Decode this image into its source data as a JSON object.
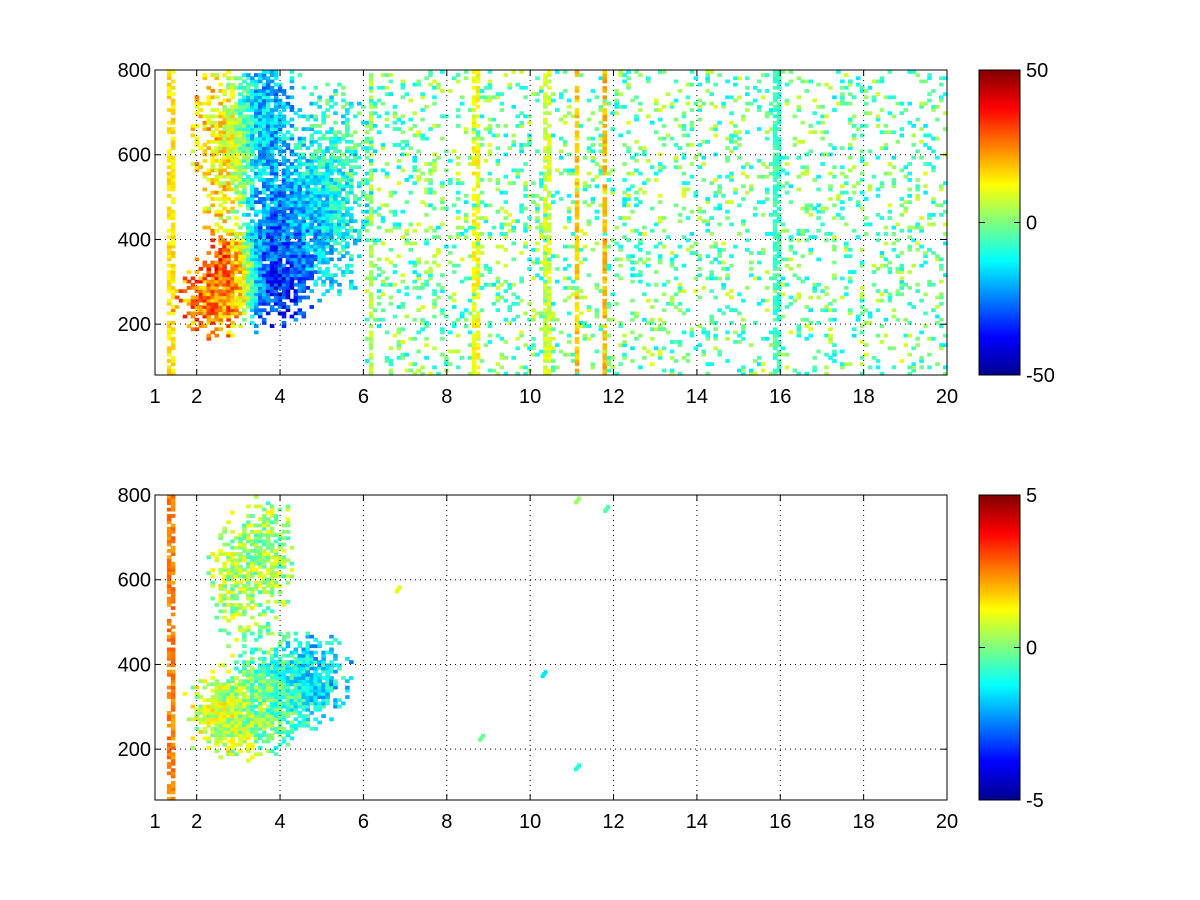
{
  "chart_data": [
    {
      "type": "heatmap",
      "title": "",
      "xlabel": "",
      "ylabel": "",
      "xlim": [
        1,
        20
      ],
      "ylim": [
        80,
        800
      ],
      "xticks": [
        1,
        2,
        4,
        6,
        8,
        10,
        12,
        14,
        16,
        18,
        20
      ],
      "yticks": [
        200,
        400,
        600,
        800
      ],
      "grid": true,
      "colormap": "jet",
      "clim": [
        -50,
        50
      ],
      "colorbar_ticks": [
        50,
        0,
        -50
      ],
      "background": "#ffffff",
      "clusters": [
        {
          "x": 2.4,
          "y": 260,
          "sx": 0.45,
          "sy": 45,
          "value": 25,
          "weight": 1.0
        },
        {
          "x": 3.0,
          "y": 330,
          "sx": 0.35,
          "sy": 50,
          "value": 40,
          "weight": 0.9
        },
        {
          "x": 3.7,
          "y": 320,
          "sx": 0.45,
          "sy": 60,
          "value": -40,
          "weight": 1.0
        },
        {
          "x": 4.3,
          "y": 420,
          "sx": 0.6,
          "sy": 90,
          "value": -25,
          "weight": 0.9
        },
        {
          "x": 2.7,
          "y": 620,
          "sx": 0.4,
          "sy": 110,
          "value": 15,
          "weight": 0.7
        },
        {
          "x": 3.6,
          "y": 680,
          "sx": 0.4,
          "sy": 110,
          "value": -20,
          "weight": 0.8
        },
        {
          "x": 5.2,
          "y": 520,
          "sx": 0.6,
          "sy": 130,
          "value": -8,
          "weight": 0.6
        }
      ],
      "stripes": [
        {
          "x": 1.4,
          "value": 15
        },
        {
          "x": 6.2,
          "value": 5
        },
        {
          "x": 8.7,
          "value": 12
        },
        {
          "x": 10.4,
          "value": 8
        },
        {
          "x": 11.1,
          "value": 18
        },
        {
          "x": 11.8,
          "value": 20
        },
        {
          "x": 15.9,
          "value": -6
        }
      ],
      "noise": {
        "xmin": 6,
        "xmax": 20,
        "density": 0.16,
        "values": [
          -15,
          10
        ]
      }
    },
    {
      "type": "heatmap",
      "title": "",
      "xlabel": "",
      "ylabel": "",
      "xlim": [
        1,
        20
      ],
      "ylim": [
        80,
        800
      ],
      "xticks": [
        1,
        2,
        4,
        6,
        8,
        10,
        12,
        14,
        16,
        18,
        20
      ],
      "yticks": [
        200,
        400,
        600,
        800
      ],
      "grid": true,
      "colormap": "jet",
      "clim": [
        -5,
        5
      ],
      "colorbar_ticks": [
        5,
        0,
        -5
      ],
      "background": "#ffffff",
      "clusters": [
        {
          "x": 2.8,
          "y": 280,
          "sx": 0.55,
          "sy": 50,
          "value": 0.8,
          "weight": 1.0
        },
        {
          "x": 3.8,
          "y": 330,
          "sx": 0.55,
          "sy": 60,
          "value": -0.5,
          "weight": 1.0
        },
        {
          "x": 4.8,
          "y": 370,
          "sx": 0.45,
          "sy": 50,
          "value": -1.6,
          "weight": 0.9
        },
        {
          "x": 2.9,
          "y": 610,
          "sx": 0.35,
          "sy": 80,
          "value": 0.5,
          "weight": 0.55
        },
        {
          "x": 3.7,
          "y": 660,
          "sx": 0.35,
          "sy": 90,
          "value": 0.2,
          "weight": 0.6
        }
      ],
      "stripes": [
        {
          "x": 1.4,
          "value": 2.5
        }
      ],
      "isolated": [
        {
          "x": 11.1,
          "y": 780,
          "value": 0.3
        },
        {
          "x": 11.8,
          "y": 760,
          "value": -0.4
        },
        {
          "x": 10.3,
          "y": 370,
          "value": -1.5
        },
        {
          "x": 11.1,
          "y": 150,
          "value": -0.8
        },
        {
          "x": 8.8,
          "y": 220,
          "value": -0.2
        },
        {
          "x": 6.8,
          "y": 570,
          "value": 1.0
        }
      ]
    }
  ]
}
